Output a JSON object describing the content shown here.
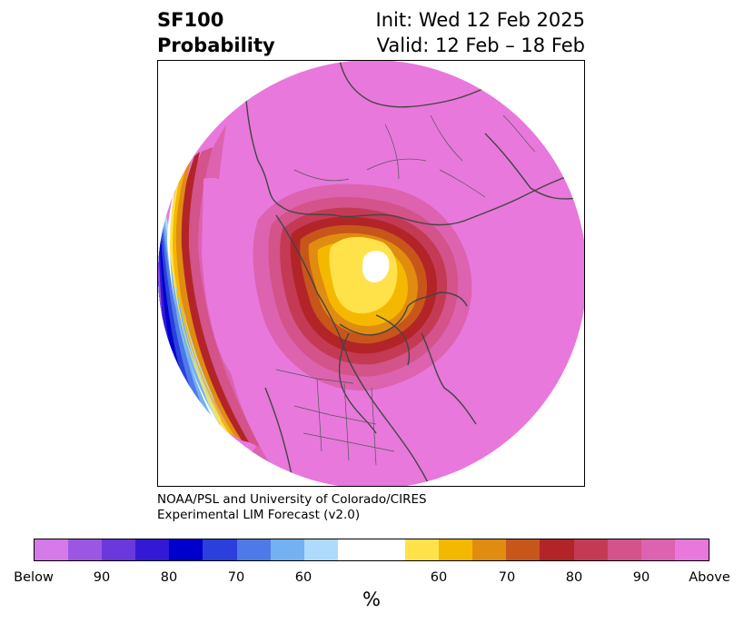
{
  "title": {
    "left_line1": "SF100",
    "left_line2": "Probability",
    "right_line1": "Init: Wed 12 Feb 2025",
    "right_line2": "Valid: 12 Feb – 18 Feb"
  },
  "credit": {
    "line1": "NOAA/PSL and University of Colorado/CIRES",
    "line2": "Experimental LIM Forecast (v2.0)"
  },
  "colorbar": {
    "colors": [
      "#d57ae8",
      "#9b57e3",
      "#6a38dc",
      "#3318d6",
      "#0000cc",
      "#2a3fdc",
      "#4d7ae8",
      "#74b1f3",
      "#aedbfb",
      "#ffffff",
      "#ffe24a",
      "#f5b800",
      "#e08c10",
      "#c8561a",
      "#b32429",
      "#c43a55",
      "#d3538a",
      "#dd62b0",
      "#e878dc"
    ],
    "ticks": [
      "Below",
      "90",
      "80",
      "70",
      "60",
      "60",
      "70",
      "80",
      "90",
      "Above"
    ],
    "unit": "%"
  },
  "map": {
    "fill_colors": {
      "above": "#e878dc",
      "p90": "#dd62b0",
      "p85": "#d3538a",
      "p80": "#c43a55",
      "p75": "#b32429",
      "p70": "#c8561a",
      "p65": "#e08c10",
      "p60": "#f5b800",
      "p55": "#ffe24a",
      "neutral": "#ffffff",
      "below60": "#aedbfb",
      "below65": "#74b1f3",
      "below70": "#4d7ae8",
      "below75": "#2a3fdc",
      "below80": "#0000cc",
      "below90": "#3318d6",
      "coast": "#444444"
    }
  }
}
